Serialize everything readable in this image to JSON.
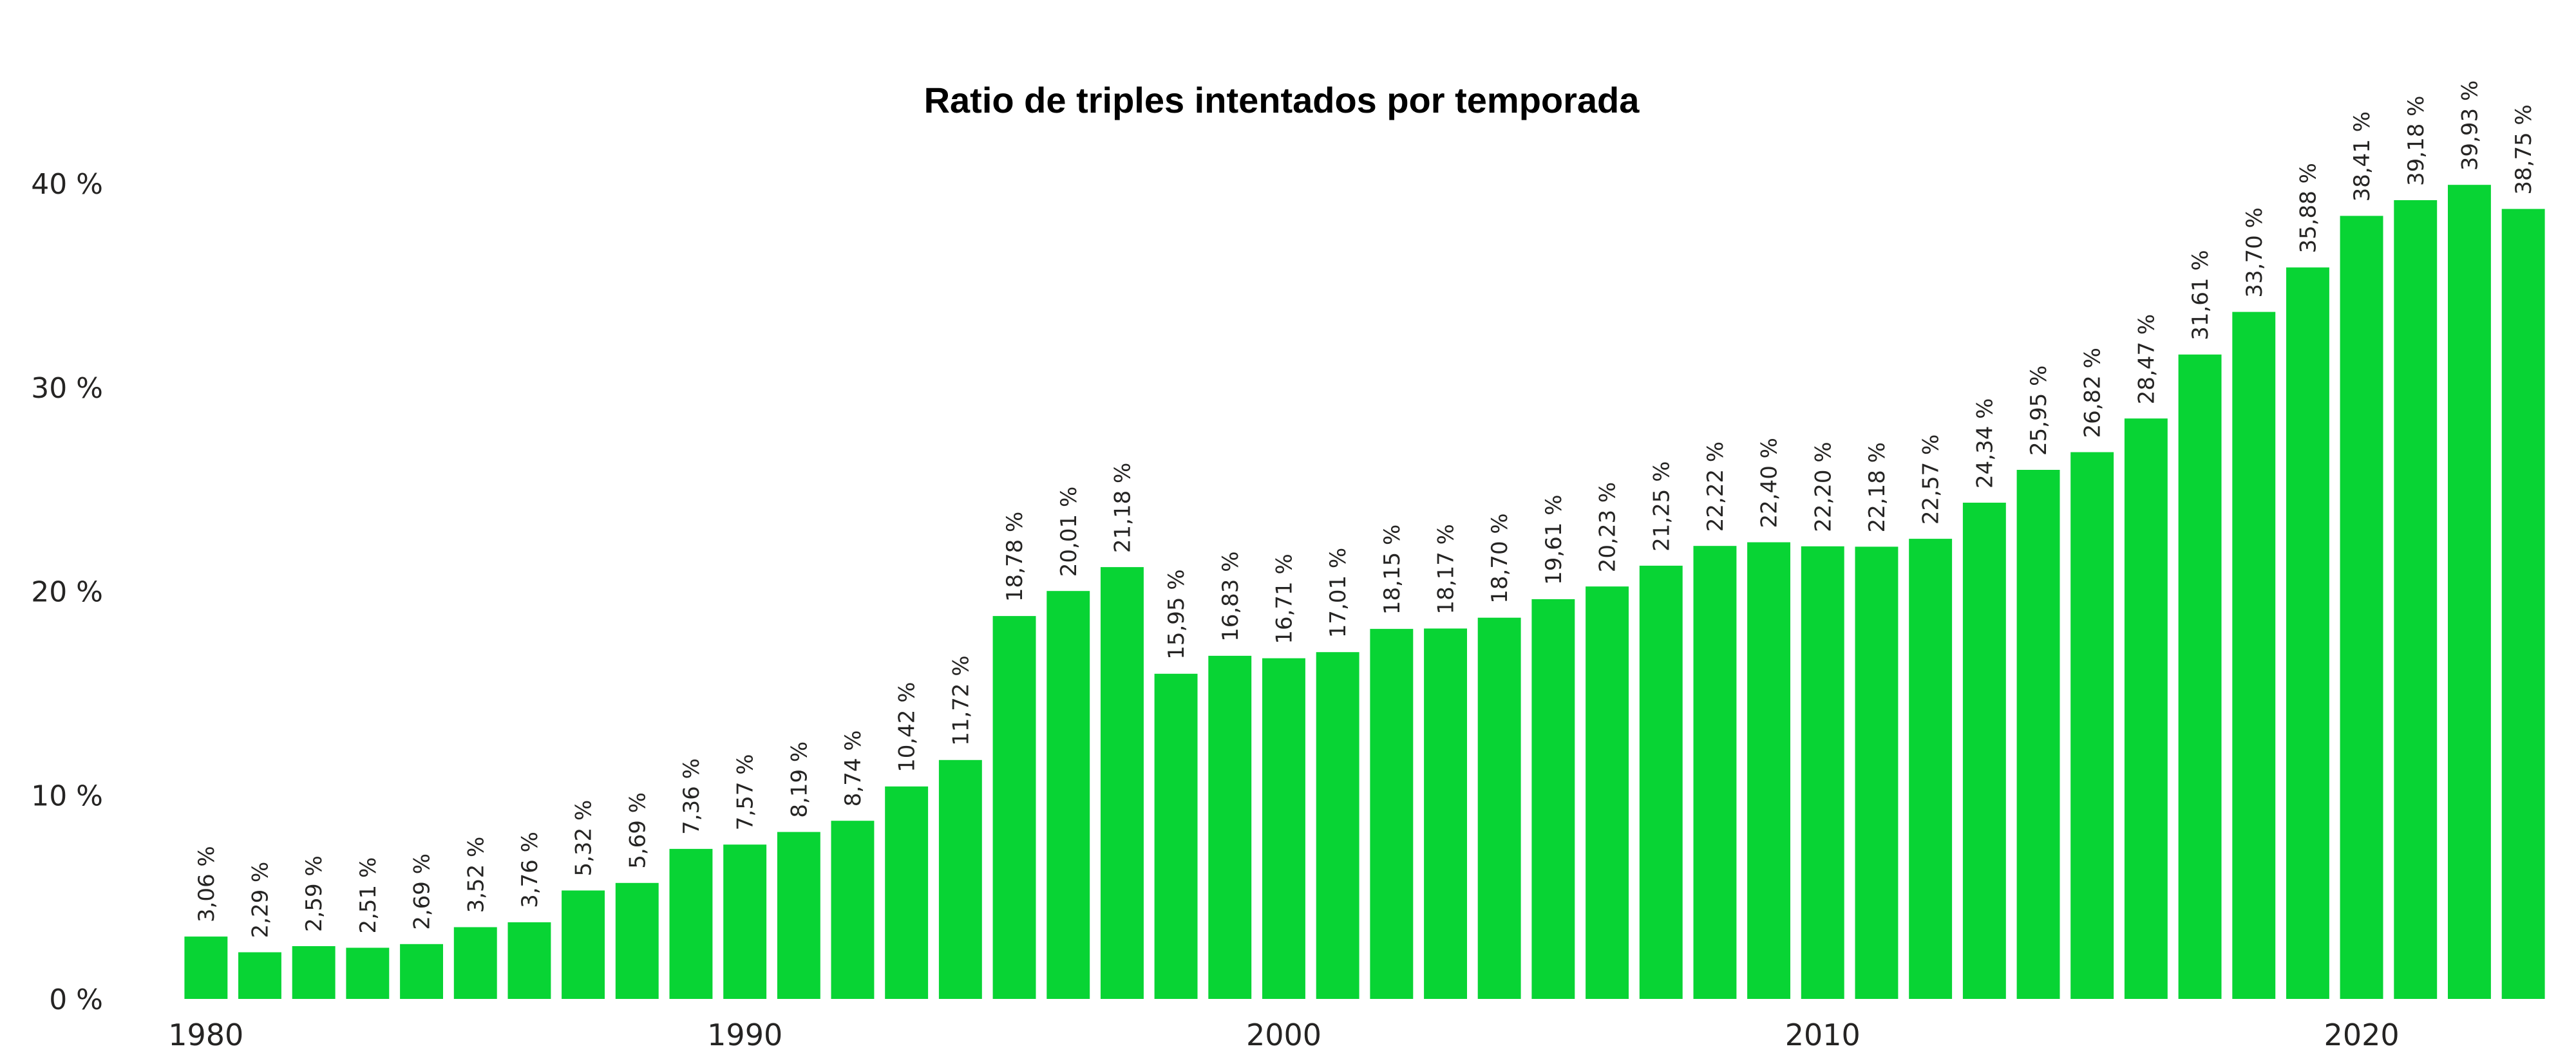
{
  "chart_data": {
    "type": "bar",
    "title": "Ratio de triples intentados por temporada",
    "xlabel": "",
    "ylabel": "",
    "grid": false,
    "legend": "none",
    "bar_color": "#08D434",
    "ylim": [
      0,
      40
    ],
    "yticks": [
      0,
      10,
      20,
      30,
      40
    ],
    "ytick_labels": [
      "0 %",
      "10 %",
      "20 %",
      "30 %",
      "40 %"
    ],
    "xticks": [
      1980,
      1990,
      2000,
      2010,
      2020
    ],
    "xtick_labels": [
      "1980",
      "1990",
      "2000",
      "2010",
      "2020"
    ],
    "categories": [
      1980,
      1981,
      1982,
      1983,
      1984,
      1985,
      1986,
      1987,
      1988,
      1989,
      1990,
      1991,
      1992,
      1993,
      1994,
      1995,
      1996,
      1997,
      1998,
      1999,
      2000,
      2001,
      2002,
      2003,
      2004,
      2005,
      2006,
      2007,
      2008,
      2009,
      2010,
      2011,
      2012,
      2013,
      2014,
      2015,
      2016,
      2017,
      2018,
      2019,
      2020,
      2021,
      2022,
      2023
    ],
    "values": [
      3.06,
      2.29,
      2.59,
      2.51,
      2.69,
      3.52,
      3.76,
      5.32,
      5.69,
      7.36,
      7.57,
      8.19,
      8.74,
      10.42,
      11.72,
      18.78,
      20.01,
      21.18,
      15.95,
      16.83,
      16.71,
      17.01,
      18.15,
      18.17,
      18.7,
      19.61,
      20.23,
      21.25,
      22.22,
      22.4,
      22.2,
      22.18,
      22.57,
      24.34,
      25.95,
      26.82,
      28.47,
      31.61,
      33.7,
      35.88,
      38.41,
      39.18,
      39.93,
      38.75
    ],
    "data_labels": [
      "3,06 %",
      "2,29 %",
      "2,59 %",
      "2,51 %",
      "2,69 %",
      "3,52 %",
      "3,76 %",
      "5,32 %",
      "5,69 %",
      "7,36 %",
      "7,57 %",
      "8,19 %",
      "8,74 %",
      "10,42 %",
      "11,72 %",
      "18,78 %",
      "20,01 %",
      "21,18 %",
      "15,95 %",
      "16,83 %",
      "16,71 %",
      "17,01 %",
      "18,15 %",
      "18,17 %",
      "18,70 %",
      "19,61 %",
      "20,23 %",
      "21,25 %",
      "22,22 %",
      "22,40 %",
      "22,20 %",
      "22,18 %",
      "22,57 %",
      "24,34 %",
      "25,95 %",
      "26,82 %",
      "28,47 %",
      "31,61 %",
      "33,70 %",
      "35,88 %",
      "38,41 %",
      "39,18 %",
      "39,93 %",
      "38,75 %"
    ]
  }
}
